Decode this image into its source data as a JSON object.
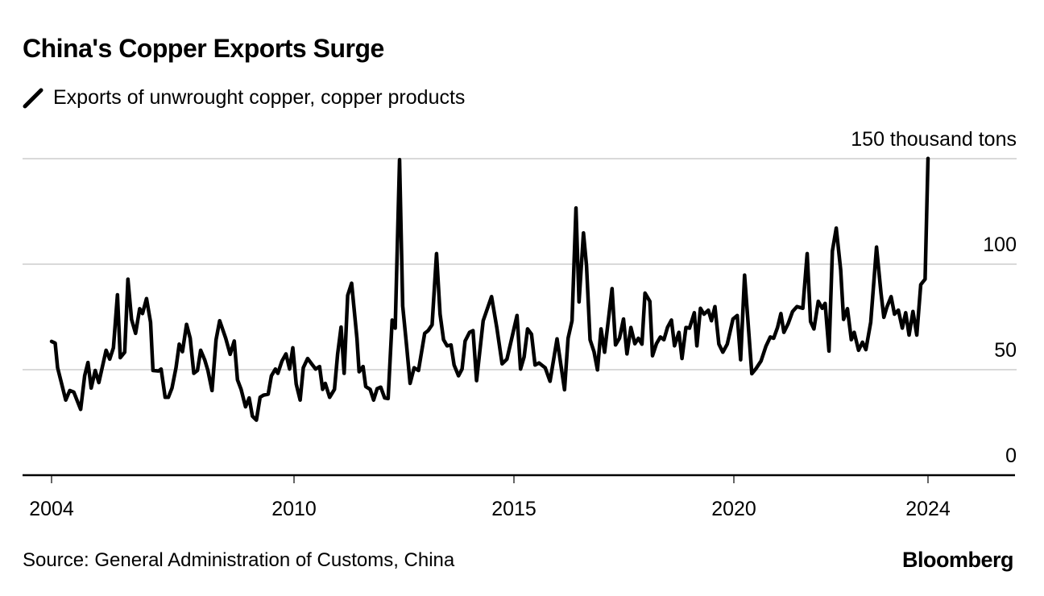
{
  "title": "China's Copper Exports Surge",
  "legend": {
    "label": "Exports of unwrought copper, copper products",
    "icon": "line-slash-icon"
  },
  "source": "Source: General Administration of Customs, China",
  "brand": "Bloomberg",
  "colors": {
    "line": "#000000",
    "grid": "#d9d9d9",
    "text": "#000000"
  },
  "chart_data": {
    "type": "line",
    "title": "China's Copper Exports Surge",
    "ylabel": "150 thousand tons",
    "ylim": [
      0,
      150
    ],
    "yticks": [
      0,
      50,
      100,
      150
    ],
    "ytick_labels": [
      "0",
      "50",
      "100",
      "150 thousand tons"
    ],
    "xticks": [
      2004,
      2010,
      2015,
      2020,
      2024
    ],
    "xtick_labels": [
      "2004",
      "2010",
      "2015",
      "2020",
      "2024"
    ],
    "grid": true,
    "series": [
      {
        "name": "Exports of unwrought copper, copper products",
        "points": [
          [
            2004.0,
            63.4
          ],
          [
            2004.09,
            62.6
          ],
          [
            2004.15,
            50.9
          ],
          [
            2004.35,
            35.6
          ],
          [
            2004.45,
            40.1
          ],
          [
            2004.55,
            39.4
          ],
          [
            2004.72,
            31.2
          ],
          [
            2004.82,
            47.1
          ],
          [
            2004.9,
            53.4
          ],
          [
            2004.98,
            41.3
          ],
          [
            2005.08,
            49.6
          ],
          [
            2005.17,
            43.9
          ],
          [
            2005.35,
            59.2
          ],
          [
            2005.44,
            55.0
          ],
          [
            2005.53,
            60.4
          ],
          [
            2005.63,
            85.5
          ],
          [
            2005.7,
            55.7
          ],
          [
            2005.81,
            58.3
          ],
          [
            2005.89,
            92.9
          ],
          [
            2005.98,
            73.8
          ],
          [
            2006.08,
            67.2
          ],
          [
            2006.18,
            78.9
          ],
          [
            2006.25,
            76.6
          ],
          [
            2006.35,
            83.7
          ],
          [
            2006.45,
            72.5
          ],
          [
            2006.51,
            49.6
          ],
          [
            2006.65,
            49.4
          ],
          [
            2006.71,
            50.3
          ],
          [
            2006.81,
            36.9
          ],
          [
            2006.89,
            36.9
          ],
          [
            2006.98,
            41.3
          ],
          [
            2007.08,
            50.9
          ],
          [
            2007.16,
            62.1
          ],
          [
            2007.24,
            58.5
          ],
          [
            2007.34,
            71.5
          ],
          [
            2007.43,
            64.9
          ],
          [
            2007.52,
            48.3
          ],
          [
            2007.61,
            49.6
          ],
          [
            2007.69,
            59.2
          ],
          [
            2007.79,
            54.7
          ],
          [
            2007.87,
            49.6
          ],
          [
            2007.97,
            40.1
          ],
          [
            2008.07,
            64.2
          ],
          [
            2008.16,
            73.2
          ],
          [
            2008.31,
            64.9
          ],
          [
            2008.42,
            57.3
          ],
          [
            2008.52,
            63.6
          ],
          [
            2008.6,
            45.2
          ],
          [
            2008.69,
            40.7
          ],
          [
            2008.8,
            32.4
          ],
          [
            2008.89,
            36.6
          ],
          [
            2008.97,
            28.0
          ],
          [
            2009.07,
            26.1
          ],
          [
            2009.16,
            36.9
          ],
          [
            2009.24,
            37.9
          ],
          [
            2009.36,
            38.4
          ],
          [
            2009.44,
            47.1
          ],
          [
            2009.54,
            50.3
          ],
          [
            2009.6,
            48.3
          ],
          [
            2009.7,
            54.1
          ],
          [
            2009.8,
            57.5
          ],
          [
            2009.89,
            50.3
          ],
          [
            2009.97,
            60.4
          ],
          [
            2010.05,
            43.2
          ],
          [
            2010.14,
            35.6
          ],
          [
            2010.21,
            50.9
          ],
          [
            2010.31,
            55.3
          ],
          [
            2010.4,
            52.8
          ],
          [
            2010.49,
            50.3
          ],
          [
            2010.58,
            51.5
          ],
          [
            2010.65,
            40.7
          ],
          [
            2010.71,
            43.5
          ],
          [
            2010.81,
            36.9
          ],
          [
            2010.92,
            40.7
          ],
          [
            2010.99,
            57.3
          ],
          [
            2011.07,
            70.2
          ],
          [
            2011.14,
            48.3
          ],
          [
            2011.22,
            85.2
          ],
          [
            2011.31,
            91.0
          ],
          [
            2011.43,
            64.9
          ],
          [
            2011.48,
            49.0
          ],
          [
            2011.57,
            51.5
          ],
          [
            2011.63,
            42.0
          ],
          [
            2011.73,
            40.7
          ],
          [
            2011.81,
            35.6
          ],
          [
            2011.89,
            41.0
          ],
          [
            2011.97,
            41.7
          ],
          [
            2012.06,
            36.6
          ],
          [
            2012.14,
            36.3
          ],
          [
            2012.23,
            73.5
          ],
          [
            2012.3,
            69.7
          ],
          [
            2012.4,
            149.5
          ],
          [
            2012.47,
            80.2
          ],
          [
            2012.56,
            61.1
          ],
          [
            2012.64,
            43.5
          ],
          [
            2012.73,
            50.9
          ],
          [
            2012.83,
            49.6
          ],
          [
            2012.97,
            67.2
          ],
          [
            2013.05,
            68.5
          ],
          [
            2013.14,
            71.3
          ],
          [
            2013.24,
            105.0
          ],
          [
            2013.32,
            76.3
          ],
          [
            2013.4,
            64.2
          ],
          [
            2013.48,
            61.3
          ],
          [
            2013.57,
            61.7
          ],
          [
            2013.64,
            52.2
          ],
          [
            2013.74,
            47.1
          ],
          [
            2013.82,
            50.3
          ],
          [
            2013.89,
            63.6
          ],
          [
            2013.99,
            67.7
          ],
          [
            2014.07,
            68.5
          ],
          [
            2014.15,
            44.8
          ],
          [
            2014.3,
            73.2
          ],
          [
            2014.49,
            84.6
          ],
          [
            2014.61,
            70.0
          ],
          [
            2014.73,
            52.8
          ],
          [
            2014.84,
            55.0
          ],
          [
            2014.95,
            64.9
          ],
          [
            2015.07,
            75.7
          ],
          [
            2015.15,
            50.3
          ],
          [
            2015.23,
            56.0
          ],
          [
            2015.31,
            69.3
          ],
          [
            2015.4,
            66.8
          ],
          [
            2015.48,
            52.2
          ],
          [
            2015.57,
            53.2
          ],
          [
            2015.71,
            50.9
          ],
          [
            2015.82,
            44.5
          ],
          [
            2015.98,
            64.6
          ],
          [
            2016.15,
            40.5
          ],
          [
            2016.23,
            64.9
          ],
          [
            2016.32,
            73.2
          ],
          [
            2016.41,
            126.6
          ],
          [
            2016.48,
            82.1
          ],
          [
            2016.58,
            114.8
          ],
          [
            2016.65,
            99.2
          ],
          [
            2016.73,
            64.2
          ],
          [
            2016.82,
            58.5
          ],
          [
            2016.9,
            49.9
          ],
          [
            2016.98,
            69.3
          ],
          [
            2017.06,
            58.3
          ],
          [
            2017.23,
            88.4
          ],
          [
            2017.31,
            61.7
          ],
          [
            2017.4,
            64.9
          ],
          [
            2017.49,
            74.0
          ],
          [
            2017.57,
            57.5
          ],
          [
            2017.66,
            70.0
          ],
          [
            2017.75,
            62.3
          ],
          [
            2017.83,
            64.9
          ],
          [
            2017.91,
            62.1
          ],
          [
            2017.98,
            86.3
          ],
          [
            2018.09,
            82.4
          ],
          [
            2018.15,
            56.6
          ],
          [
            2018.24,
            62.3
          ],
          [
            2018.33,
            65.5
          ],
          [
            2018.41,
            64.2
          ],
          [
            2018.49,
            70.0
          ],
          [
            2018.58,
            73.5
          ],
          [
            2018.65,
            61.3
          ],
          [
            2018.75,
            67.7
          ],
          [
            2018.82,
            55.3
          ],
          [
            2018.91,
            70.0
          ],
          [
            2018.99,
            69.7
          ],
          [
            2019.1,
            77.0
          ],
          [
            2019.16,
            61.3
          ],
          [
            2019.24,
            79.1
          ],
          [
            2019.32,
            76.3
          ],
          [
            2019.42,
            78.2
          ],
          [
            2019.49,
            73.2
          ],
          [
            2019.57,
            79.9
          ],
          [
            2019.66,
            62.1
          ],
          [
            2019.75,
            58.3
          ],
          [
            2019.85,
            62.1
          ],
          [
            2019.98,
            74.0
          ],
          [
            2020.07,
            75.7
          ],
          [
            2020.14,
            54.7
          ],
          [
            2020.22,
            94.8
          ],
          [
            2020.37,
            48.1
          ],
          [
            2020.45,
            50.3
          ],
          [
            2020.56,
            54.1
          ],
          [
            2020.66,
            61.1
          ],
          [
            2020.75,
            65.5
          ],
          [
            2020.82,
            64.9
          ],
          [
            2020.9,
            70.0
          ],
          [
            2020.97,
            76.6
          ],
          [
            2021.03,
            67.7
          ],
          [
            2021.12,
            71.9
          ],
          [
            2021.21,
            77.6
          ],
          [
            2021.3,
            79.9
          ],
          [
            2021.42,
            79.1
          ],
          [
            2021.51,
            105.0
          ],
          [
            2021.58,
            72.8
          ],
          [
            2021.65,
            69.3
          ],
          [
            2021.74,
            82.4
          ],
          [
            2021.82,
            79.1
          ],
          [
            2021.88,
            81.4
          ],
          [
            2021.96,
            58.8
          ],
          [
            2022.03,
            106.2
          ],
          [
            2022.11,
            117.1
          ],
          [
            2022.2,
            97.3
          ],
          [
            2022.26,
            73.8
          ],
          [
            2022.34,
            78.9
          ],
          [
            2022.42,
            64.2
          ],
          [
            2022.48,
            67.7
          ],
          [
            2022.57,
            59.2
          ],
          [
            2022.65,
            63.0
          ],
          [
            2022.72,
            59.5
          ],
          [
            2022.82,
            72.5
          ],
          [
            2022.94,
            108.1
          ],
          [
            2023.03,
            86.5
          ],
          [
            2023.09,
            74.8
          ],
          [
            2023.15,
            79.5
          ],
          [
            2023.24,
            84.6
          ],
          [
            2023.31,
            76.3
          ],
          [
            2023.39,
            78.2
          ],
          [
            2023.47,
            69.7
          ],
          [
            2023.54,
            77.0
          ],
          [
            2023.61,
            66.4
          ],
          [
            2023.69,
            77.6
          ],
          [
            2023.77,
            66.4
          ],
          [
            2023.85,
            90.3
          ],
          [
            2023.94,
            92.9
          ],
          [
            2024.0,
            150.1
          ]
        ]
      }
    ]
  }
}
